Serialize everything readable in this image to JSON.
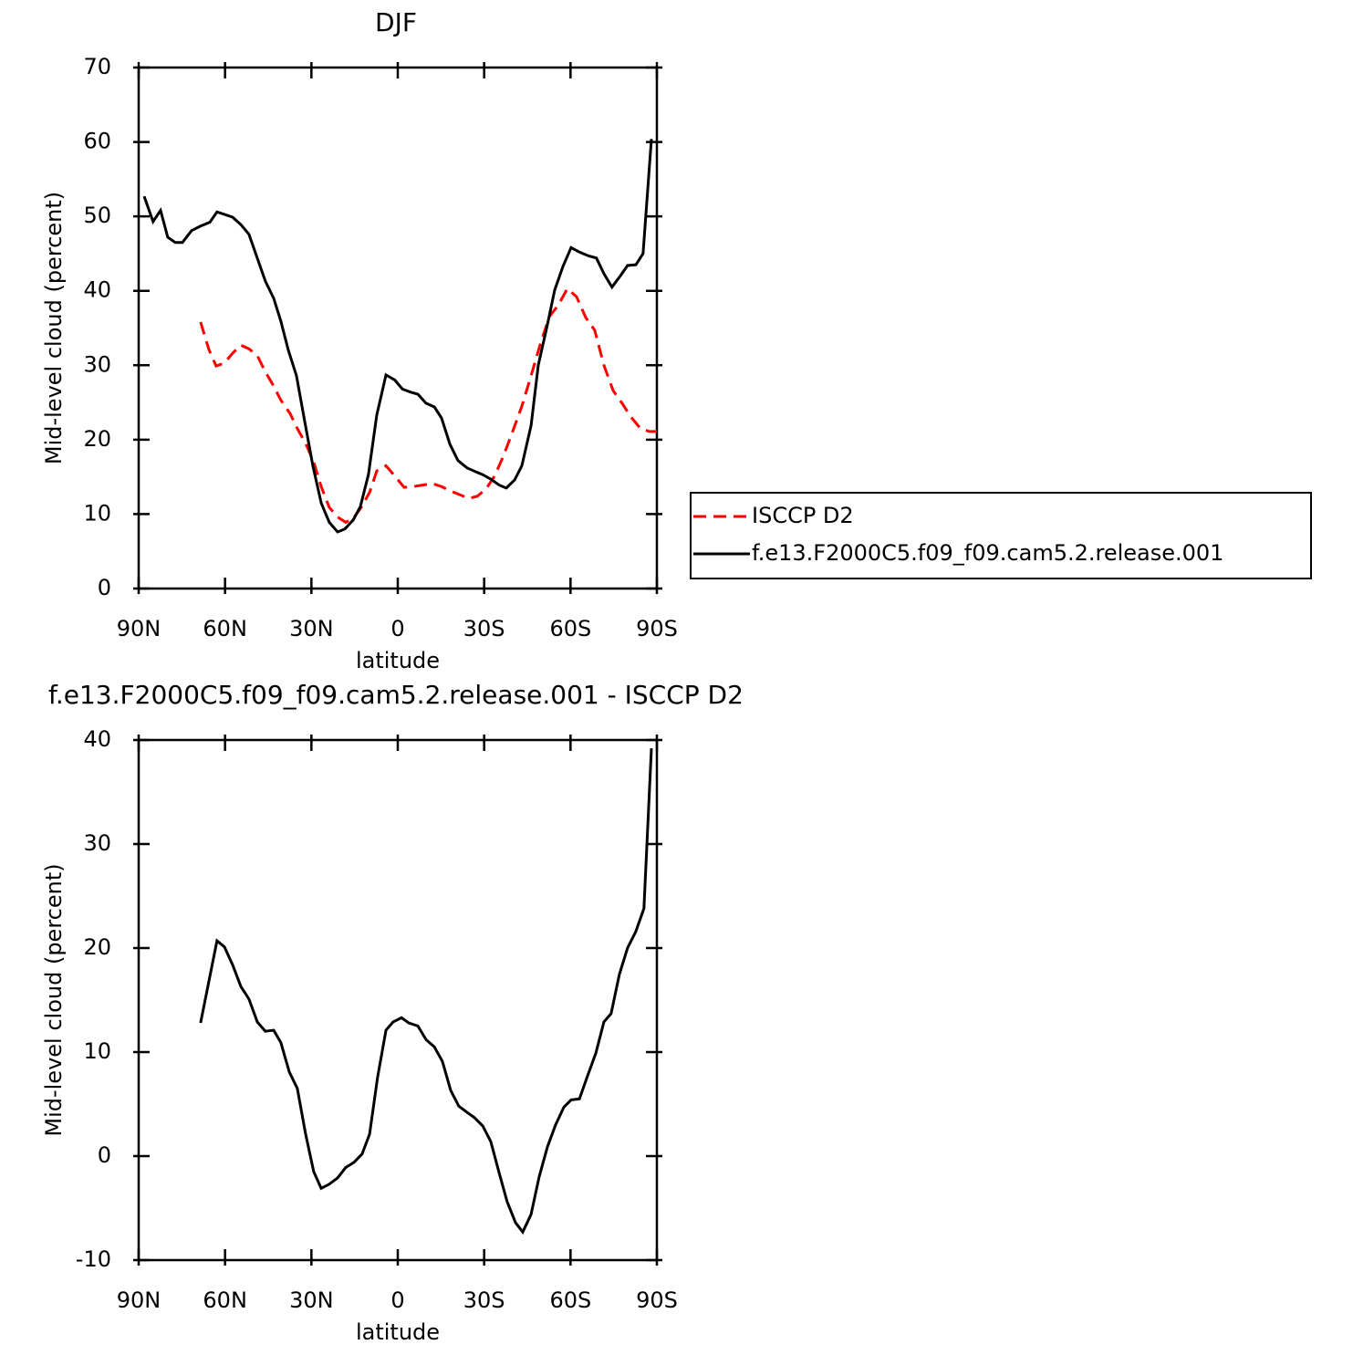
{
  "chart_data": [
    {
      "type": "line",
      "title": "DJF",
      "xlabel": "latitude",
      "ylabel": "Mid-level cloud (percent)",
      "xlim": [
        90,
        -90
      ],
      "xticks": [
        {
          "value": 90,
          "label": "90N"
        },
        {
          "value": 60,
          "label": "60N"
        },
        {
          "value": 30,
          "label": "30N"
        },
        0,
        {
          "value": -30,
          "label": "30S"
        },
        {
          "value": -60,
          "label": "60S"
        },
        {
          "value": -90,
          "label": "90S"
        }
      ],
      "ylim": [
        0,
        70
      ],
      "yticks": [
        0,
        10,
        20,
        30,
        40,
        50,
        60,
        70
      ],
      "legend": "right",
      "series": [
        {
          "name": "ISCCP D2",
          "color": "#ff0000",
          "style": "dashed",
          "x": [
            68.5,
            65.6,
            63.1,
            60.2,
            57.4,
            54.5,
            51.7,
            48.8,
            46,
            43.1,
            40.6,
            37.4,
            34.9,
            32,
            29.2,
            26.6,
            23.8,
            20.9,
            18.1,
            15.5,
            12.7,
            9.8,
            7.3,
            4.1,
            1,
            -2.2,
            -5.4,
            -8.6,
            -12.1,
            -15.2,
            -18.4,
            -21.6,
            -24.7,
            -27.6,
            -30.7,
            -33.6,
            -36.7,
            -39.9,
            -43.1,
            -46.3,
            -49.4,
            -52.6,
            -55.8,
            -58.9,
            -62.1,
            -65.3,
            -68.4,
            -71.6,
            -74.8,
            -77.9,
            -81.1,
            -84.3,
            -87.4,
            -90
          ],
          "values": [
            35.8,
            32.1,
            29.9,
            30.3,
            31.6,
            32.7,
            32.2,
            31.3,
            29.1,
            27.2,
            25.3,
            23.5,
            21.5,
            19.5,
            17.0,
            13.7,
            10.9,
            9.6,
            8.9,
            9.4,
            10.9,
            12.9,
            15.8,
            16.5,
            15.1,
            13.6,
            13.7,
            13.9,
            14.1,
            13.7,
            13.1,
            12.6,
            12.1,
            12.4,
            13.4,
            15.1,
            17.8,
            21.1,
            24.5,
            28.6,
            32.7,
            36.5,
            38.1,
            40.3,
            39.2,
            36.4,
            34.7,
            30,
            26.6,
            24.9,
            23,
            21.5,
            21.1,
            21.1
          ]
        },
        {
          "name": "f.e13.F2000C5.f09_f09.cam5.2.release.001",
          "color": "#000000",
          "style": "solid",
          "x": [
            88.1,
            85,
            82.4,
            79.9,
            77.3,
            74.8,
            71.6,
            68.5,
            65.3,
            62.8,
            57.4,
            54.5,
            51.7,
            48.8,
            46,
            43.1,
            40.6,
            38,
            35.2,
            32.3,
            29.5,
            26.6,
            23.8,
            20.9,
            18.4,
            15.5,
            13,
            10.2,
            7.3,
            4.1,
            1,
            -1.6,
            -4.4,
            -7,
            -9.8,
            -12.7,
            -15.2,
            -18.1,
            -20.9,
            -24.1,
            -27,
            -29.5,
            -32.3,
            -35.2,
            -37.7,
            -40.6,
            -43.1,
            -46.3,
            -48.8,
            -52,
            -54.5,
            -57.4,
            -60.2,
            -63.1,
            -66.2,
            -69,
            -71.6,
            -74.4,
            -77.3,
            -79.8,
            -82.7,
            -85.2,
            -88.1
          ],
          "values": [
            52.7,
            49.3,
            50.8,
            47.2,
            46.5,
            46.5,
            48.1,
            48.7,
            49.2,
            50.6,
            49.9,
            48.9,
            47.6,
            44.4,
            41.3,
            39,
            35.9,
            32,
            28.6,
            22.4,
            16.5,
            11.5,
            8.9,
            7.6,
            8,
            9.2,
            11,
            15.3,
            23.3,
            28.7,
            28,
            26.8,
            26.4,
            26.1,
            24.9,
            24.4,
            22.9,
            19.4,
            17.2,
            16.2,
            15.7,
            15.3,
            14.7,
            13.9,
            13.5,
            14.6,
            16.5,
            21.9,
            30,
            35.5,
            40.1,
            43.3,
            45.8,
            45.2,
            44.7,
            44.4,
            42.3,
            40.5,
            42,
            43.4,
            43.5,
            45,
            60.4
          ]
        }
      ]
    },
    {
      "type": "line",
      "title": "f.e13.F2000C5.f09_f09.cam5.2.release.001 - ISCCP D2",
      "xlabel": "latitude",
      "ylabel": "Mid-level cloud (percent)",
      "xlim": [
        90,
        -90
      ],
      "xticks": [
        {
          "value": 90,
          "label": "90N"
        },
        {
          "value": 60,
          "label": "60N"
        },
        {
          "value": 30,
          "label": "30N"
        },
        0,
        {
          "value": -30,
          "label": "30S"
        },
        {
          "value": -60,
          "label": "60S"
        },
        {
          "value": -90,
          "label": "90S"
        }
      ],
      "ylim": [
        -10,
        40
      ],
      "yticks": [
        -10,
        0,
        10,
        20,
        30,
        40
      ],
      "series": [
        {
          "color": "#000000",
          "style": "solid",
          "x": [
            68.5,
            62.8,
            60.2,
            57.4,
            54.5,
            51.7,
            48.8,
            46,
            43.1,
            40.6,
            37.7,
            34.9,
            32,
            29.2,
            26.6,
            23.8,
            20.9,
            18.1,
            15.2,
            12.4,
            9.8,
            7,
            4.1,
            1.6,
            -1.3,
            -3.8,
            -7,
            -9.8,
            -12.7,
            -15.5,
            -18.4,
            -21.2,
            -24.1,
            -26.6,
            -29.5,
            -32.3,
            -35.2,
            -38,
            -40.9,
            -43.4,
            -46.3,
            -49.1,
            -52,
            -54.8,
            -57.7,
            -60.2,
            -63.1,
            -65.9,
            -68.8,
            -71.6,
            -74.1,
            -77,
            -79.8,
            -82.7,
            -85.5,
            -88.1
          ],
          "values": [
            12.8,
            20.7,
            20.1,
            18.4,
            16.3,
            15.1,
            12.9,
            12,
            12.1,
            10.9,
            8.1,
            6.5,
            2.1,
            -1.5,
            -3.1,
            -2.7,
            -2.1,
            -1.1,
            -0.6,
            0.2,
            2.1,
            7.6,
            12.1,
            12.9,
            13.3,
            12.8,
            12.5,
            11.2,
            10.5,
            9.1,
            6.3,
            4.8,
            4.2,
            3.7,
            2.9,
            1.4,
            -1.6,
            -4.4,
            -6.4,
            -7.3,
            -5.6,
            -2,
            0.9,
            3,
            4.7,
            5.4,
            5.5,
            7.7,
            9.9,
            12.9,
            13.7,
            17.5,
            20,
            21.6,
            23.8,
            39.2
          ]
        }
      ]
    }
  ]
}
